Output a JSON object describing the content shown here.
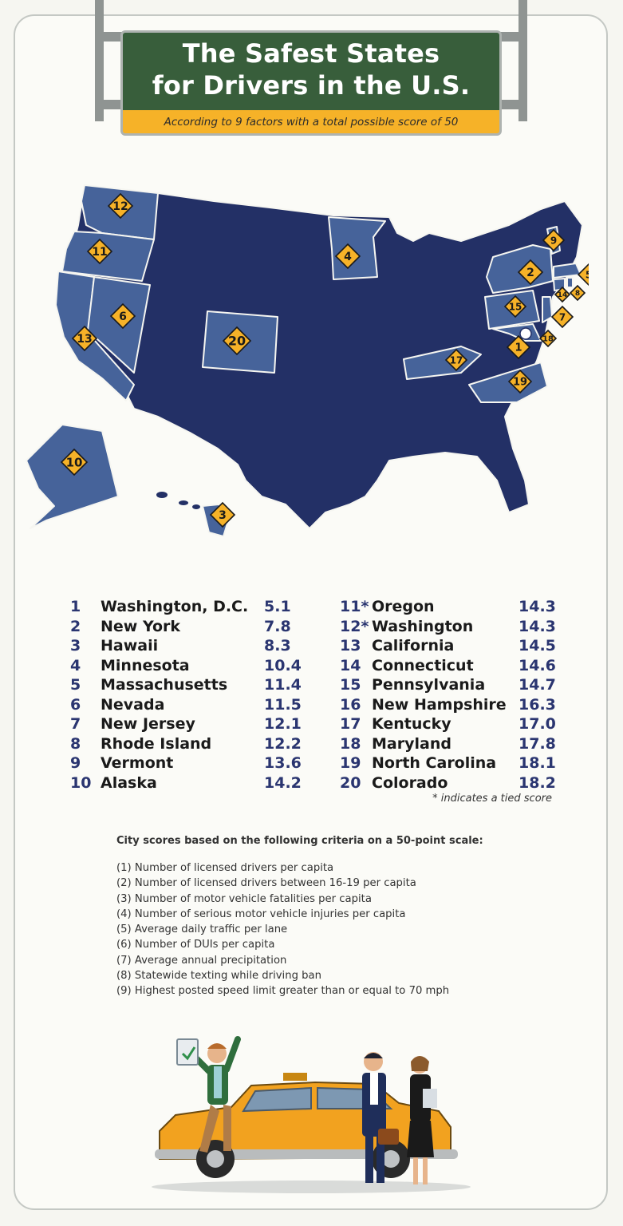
{
  "header": {
    "title_line1": "The Safest States",
    "title_line2": "for Drivers in the U.S.",
    "subtitle": "According to 9 factors with a total possible score of 50"
  },
  "colors": {
    "background": "#fbfbf7",
    "sign_green": "#385e3b",
    "banner_yellow": "#f6b228",
    "map_dark": "#233066",
    "map_highlight": "#46639a",
    "marker_yellow": "#f6b228",
    "rank_blue": "#2a3570"
  },
  "map_markers": [
    "12",
    "11",
    "4",
    "9",
    "2",
    "5",
    "14",
    "8",
    "7",
    "15",
    "6",
    "13",
    "20",
    "17",
    "18",
    "1",
    "19",
    "10",
    "3"
  ],
  "rankings_left": [
    {
      "rank": "1",
      "state": "Washington, D.C.",
      "score": "5.1"
    },
    {
      "rank": "2",
      "state": "New York",
      "score": "7.8"
    },
    {
      "rank": "3",
      "state": "Hawaii",
      "score": "8.3"
    },
    {
      "rank": "4",
      "state": "Minnesota",
      "score": "10.4"
    },
    {
      "rank": "5",
      "state": "Massachusetts",
      "score": "11.4"
    },
    {
      "rank": "6",
      "state": "Nevada",
      "score": "11.5"
    },
    {
      "rank": "7",
      "state": "New Jersey",
      "score": "12.1"
    },
    {
      "rank": "8",
      "state": "Rhode Island",
      "score": "12.2"
    },
    {
      "rank": "9",
      "state": "Vermont",
      "score": "13.6"
    },
    {
      "rank": "10",
      "state": "Alaska",
      "score": "14.2"
    }
  ],
  "rankings_right": [
    {
      "rank": "11*",
      "state": "Oregon",
      "score": "14.3"
    },
    {
      "rank": "12*",
      "state": "Washington",
      "score": "14.3"
    },
    {
      "rank": "13",
      "state": "California",
      "score": "14.5"
    },
    {
      "rank": "14",
      "state": "Connecticut",
      "score": "14.6"
    },
    {
      "rank": "15",
      "state": "Pennsylvania",
      "score": "14.7"
    },
    {
      "rank": "16",
      "state": "New Hampshire",
      "score": "16.3"
    },
    {
      "rank": "17",
      "state": "Kentucky",
      "score": "17.0"
    },
    {
      "rank": "18",
      "state": "Maryland",
      "score": "17.8"
    },
    {
      "rank": "19",
      "state": "North Carolina",
      "score": "18.1"
    },
    {
      "rank": "20",
      "state": "Colorado",
      "score": "18.2"
    }
  ],
  "tie_note": "* indicates a tied score",
  "criteria": {
    "heading": "City scores based on the following criteria on a 50-point scale:",
    "items": [
      "(1) Number of licensed drivers per capita",
      "(2) Number of licensed drivers between 16-19 per capita",
      "(3) Number of motor vehicle fatalities per capita",
      "(4) Number of serious motor vehicle injuries per capita",
      "(5) Average daily traffic per lane",
      "(6) Number of DUIs per capita",
      "(7) Average annual precipitation",
      "(8) Statewide texting while driving ban",
      "(9) Highest posted speed limit greater than or equal to 70 mph"
    ]
  }
}
